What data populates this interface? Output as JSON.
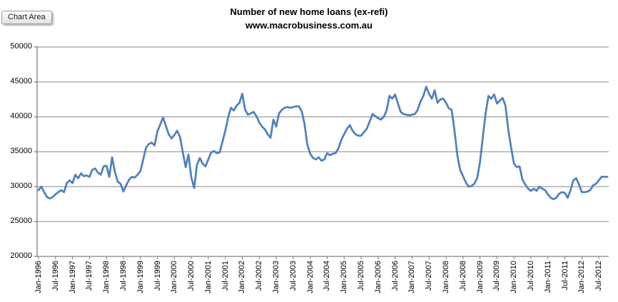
{
  "tooltip": {
    "label": "Chart Area"
  },
  "chart_data": {
    "type": "line",
    "title": "Number of new home loans (ex-refi)",
    "subtitle": "www.macrobusiness.com.au",
    "legend": "none",
    "grid": "horizontal",
    "series_name": "Number of new home loans (ex-refi)",
    "series_color": "#4f81bd",
    "gridline_color": "#9d9d9d",
    "axis_color": "#808080",
    "ylim": [
      20000,
      50000
    ],
    "ytick_step": 5000,
    "yticks": [
      50000,
      45000,
      40000,
      35000,
      30000,
      25000,
      20000
    ],
    "x_unit": "month",
    "x_start": "Jan-1996",
    "x_end": "Oct-2012",
    "xtick_every_months": 6,
    "xtick_labels": [
      "Jan-1996",
      "Jul-1996",
      "Jan-1997",
      "Jul-1997",
      "Jan-1998",
      "Jul-1998",
      "Jan-1999",
      "Jul-1999",
      "Jan-2000",
      "Jul-2000",
      "Jan-2001",
      "Jul-2001",
      "Jan-2002",
      "Jul-2002",
      "Jan-2003",
      "Jul-2003",
      "Jan-2004",
      "Jul-2004",
      "Jan-2005",
      "Jul-2005",
      "Jan-2006",
      "Jul-2006",
      "Jan-2007",
      "Jul-2007",
      "Jan-2008",
      "Jul-2008",
      "Jan-2009",
      "Jul-2009",
      "Jan-2010",
      "Jul-2010",
      "Jan-2011",
      "Jul-2011",
      "Jan-2012",
      "Jul-2012"
    ],
    "values": [
      29500,
      30000,
      29200,
      28500,
      28300,
      28500,
      28900,
      29200,
      29500,
      29200,
      30500,
      30900,
      30500,
      31700,
      31200,
      31900,
      31500,
      31600,
      31400,
      32400,
      32600,
      32000,
      31700,
      32900,
      33000,
      31400,
      34200,
      32100,
      30700,
      30400,
      29300,
      30200,
      31000,
      31400,
      31300,
      31700,
      32200,
      33900,
      35600,
      36100,
      36300,
      35900,
      37900,
      38900,
      39900,
      38700,
      37500,
      36900,
      37400,
      38000,
      37100,
      34900,
      32800,
      34600,
      31300,
      29800,
      33100,
      34100,
      33300,
      32900,
      33900,
      34900,
      35100,
      34800,
      34900,
      36400,
      38000,
      39900,
      41300,
      40900,
      41600,
      42000,
      43300,
      41000,
      40300,
      40500,
      40700,
      40100,
      39200,
      38600,
      38200,
      37500,
      37000,
      39600,
      38600,
      40500,
      41000,
      41300,
      41400,
      41300,
      41400,
      41500,
      41500,
      40800,
      39000,
      36000,
      34700,
      34100,
      33900,
      34200,
      33700,
      33900,
      34800,
      34500,
      34700,
      34800,
      35500,
      36700,
      37500,
      38300,
      38800,
      38000,
      37500,
      37300,
      37300,
      37800,
      38300,
      39300,
      40400,
      40100,
      39800,
      39600,
      40000,
      40900,
      43000,
      42600,
      43200,
      41900,
      40700,
      40400,
      40300,
      40200,
      40300,
      40400,
      41000,
      42200,
      43000,
      44300,
      43300,
      42600,
      43800,
      42000,
      42500,
      42600,
      42000,
      41200,
      41000,
      38000,
      34500,
      32400,
      31500,
      30600,
      30000,
      30100,
      30400,
      31200,
      33500,
      37000,
      40500,
      43000,
      42600,
      43200,
      41900,
      42300,
      42700,
      41600,
      38200,
      35600,
      33300,
      32800,
      32900,
      31000,
      30300,
      29700,
      29400,
      29700,
      29400,
      30000,
      29700,
      29500,
      28900,
      28400,
      28200,
      28400,
      29000,
      29200,
      29100,
      28400,
      29500,
      30900,
      31200,
      30300,
      29200,
      29200,
      29300,
      29500,
      30200,
      30400,
      30900,
      31400,
      31400,
      31400
    ]
  }
}
